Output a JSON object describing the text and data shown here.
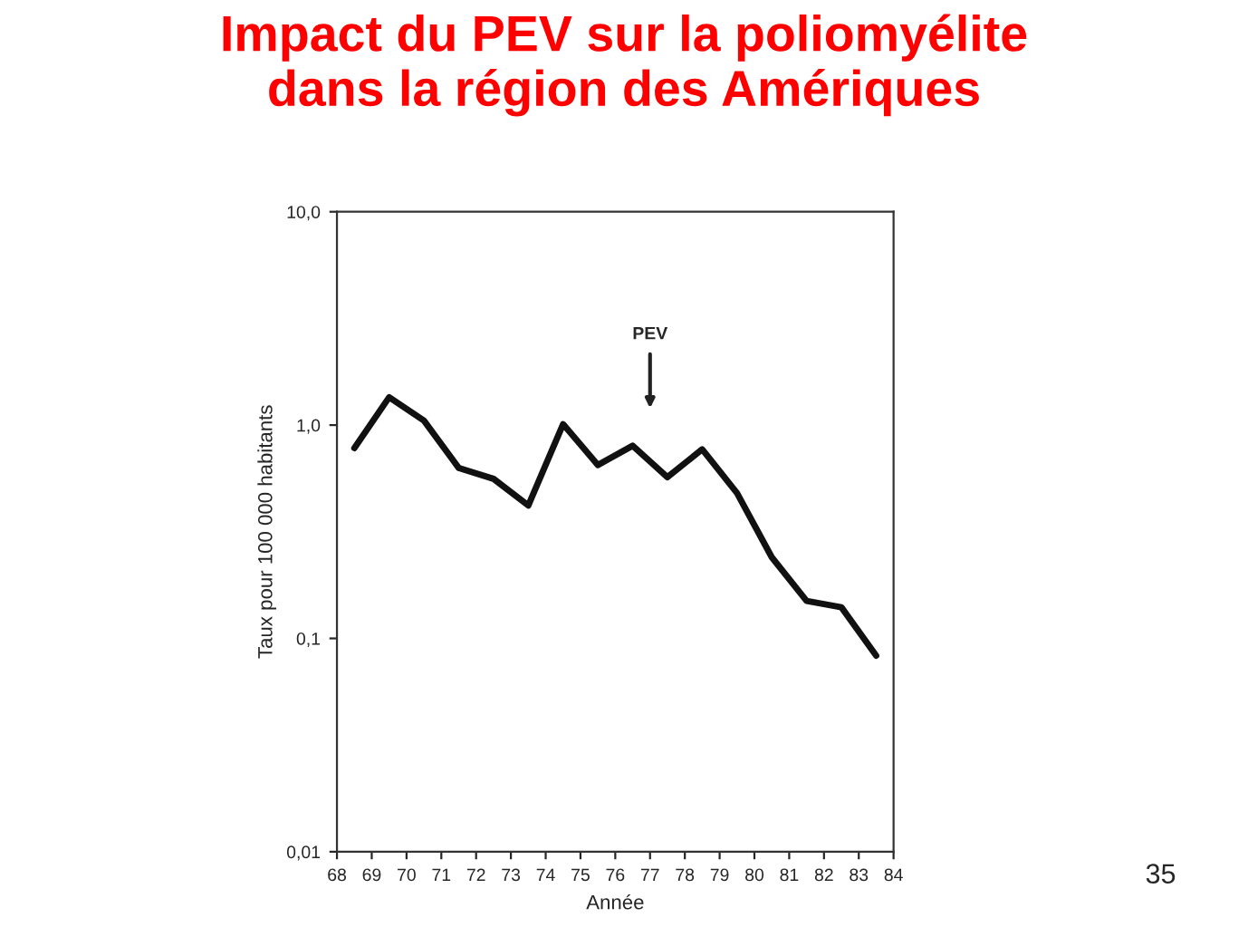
{
  "chart_data": {
    "type": "line",
    "title": "Impact du PEV sur la poliomyélite\ndans la région des Amériques",
    "xlabel": "Année",
    "ylabel": "Taux pour 100 000 habitants",
    "x": [
      68.5,
      69.5,
      70.5,
      71.5,
      72.5,
      73.5,
      74.5,
      75.5,
      76.5,
      77.5,
      78.5,
      79.5,
      80.5,
      81.5,
      82.5,
      83.5
    ],
    "series": [
      {
        "color": "#111111",
        "values": [
          0.78,
          1.35,
          1.05,
          0.63,
          0.56,
          0.42,
          1.01,
          0.65,
          0.8,
          0.57,
          0.77,
          0.48,
          0.24,
          0.15,
          0.14,
          0.083
        ]
      }
    ],
    "log": "y",
    "xlim": [
      68,
      84
    ],
    "xticks": [
      68,
      69,
      70,
      71,
      72,
      73,
      74,
      75,
      76,
      77,
      78,
      79,
      80,
      81,
      82,
      83,
      84
    ],
    "ylim": [
      0.01,
      10
    ],
    "yticks": [
      {
        "value": 0.01,
        "label": "0,01"
      },
      {
        "value": 0.1,
        "label": "0,1"
      },
      {
        "value": 1,
        "label": "1,0"
      },
      {
        "value": 10,
        "label": "10,0"
      }
    ],
    "annotations": [
      "PEV",
      "35"
    ],
    "grid": false,
    "legend": false,
    "marker": "none",
    "line_style": "solid"
  }
}
